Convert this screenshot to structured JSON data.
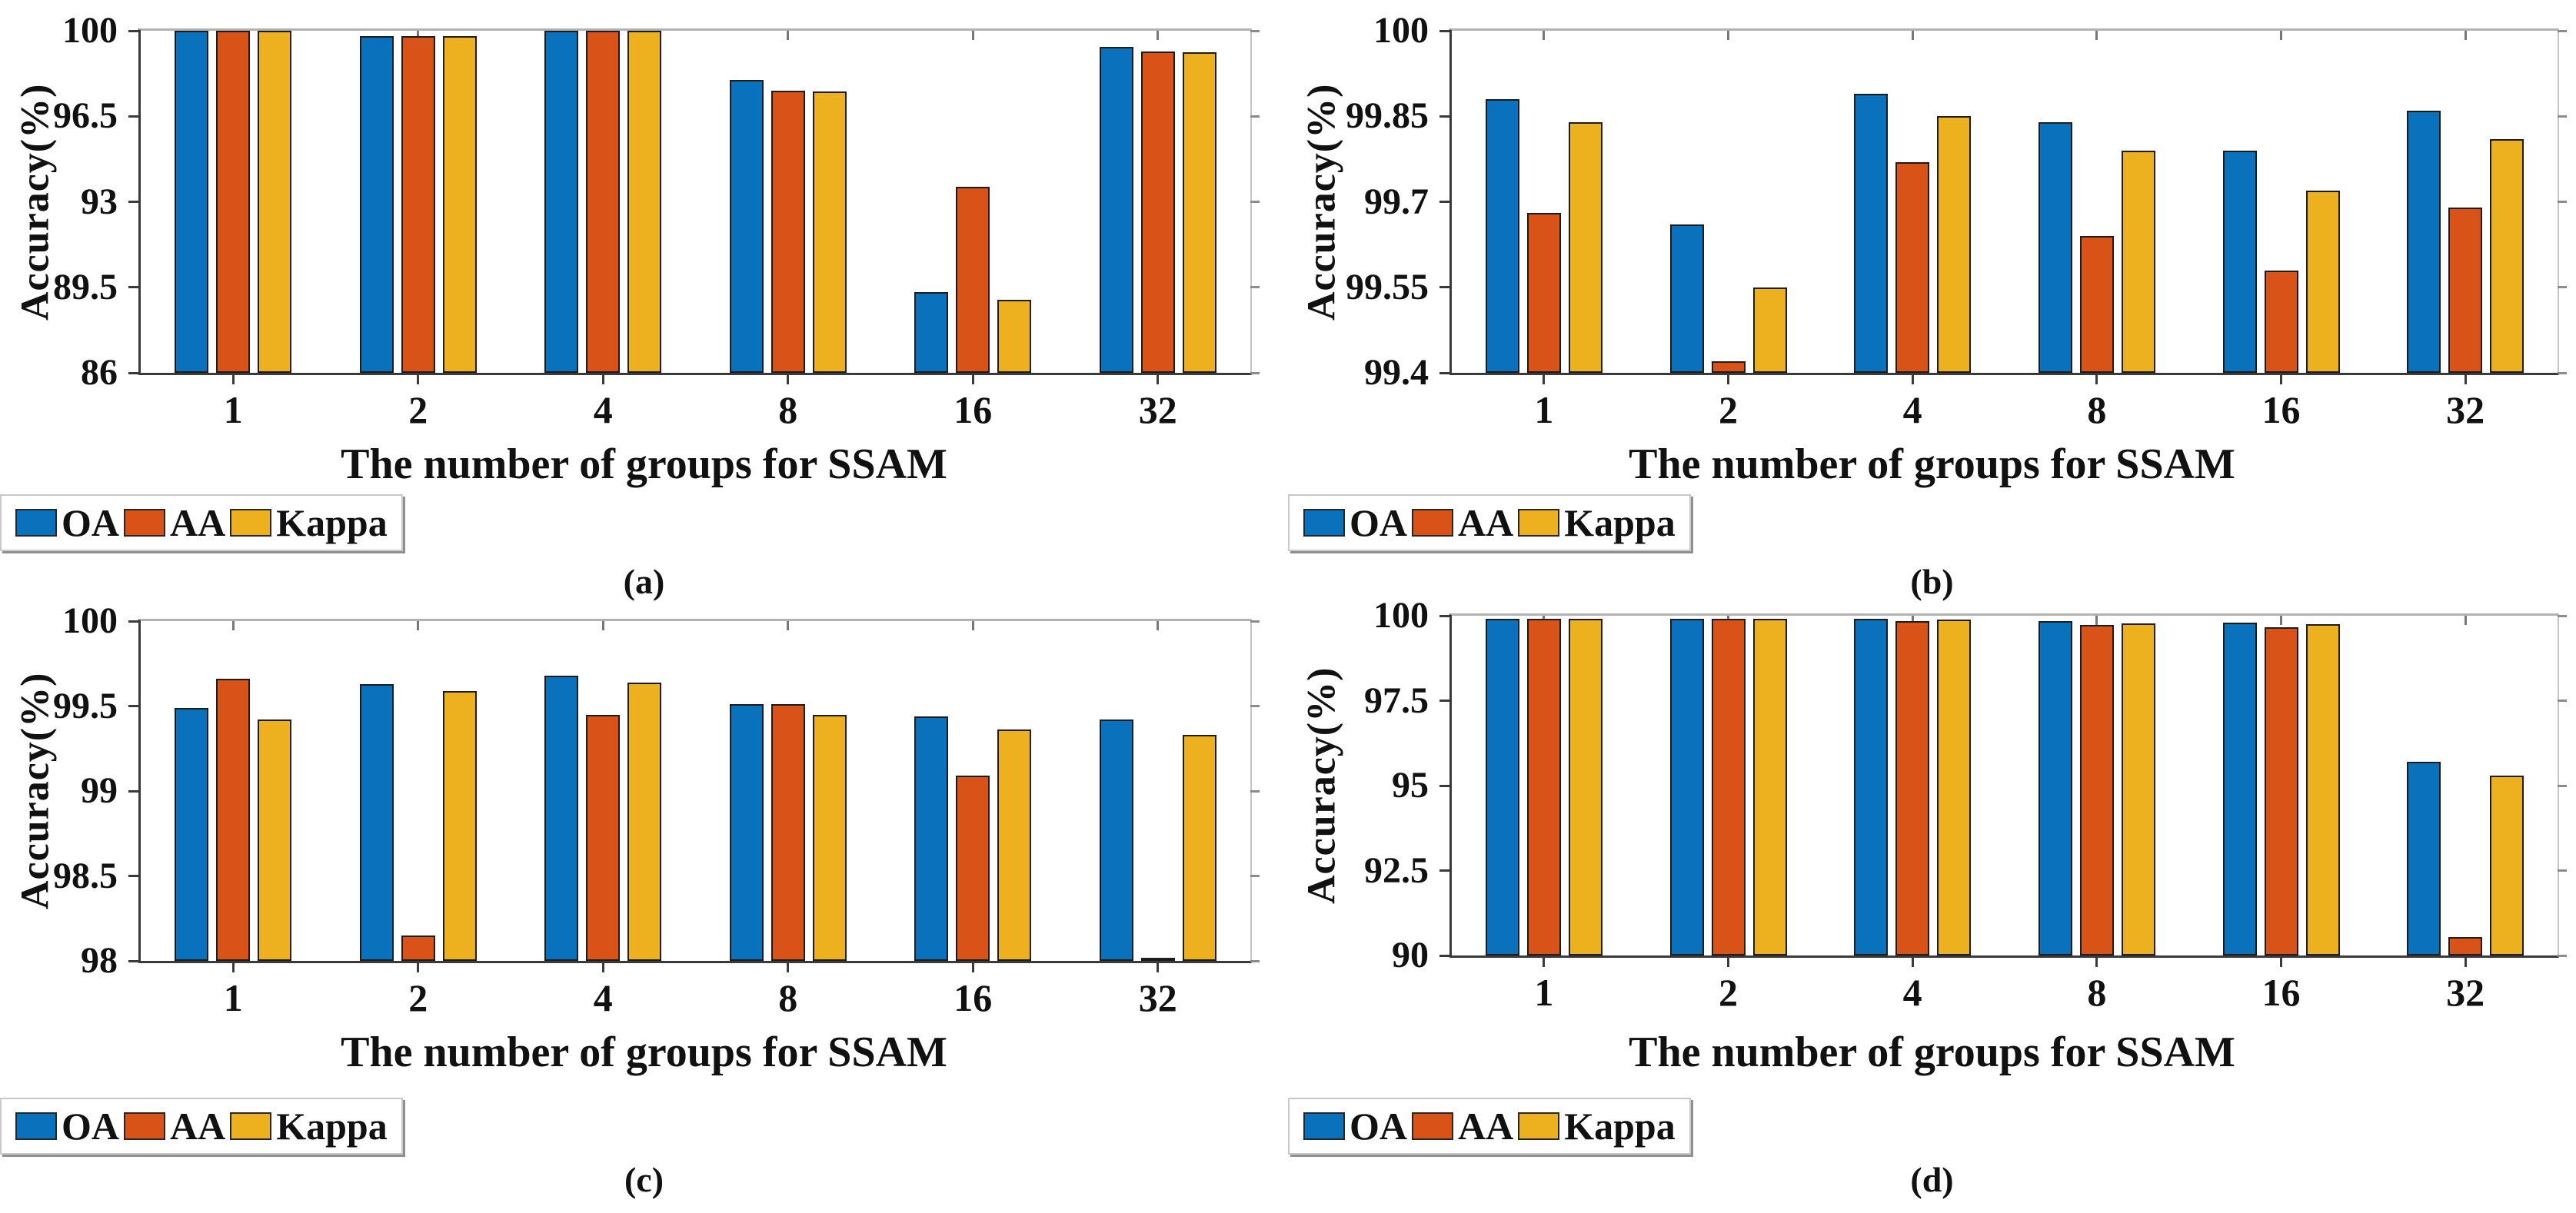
{
  "figure": {
    "y_label": "Accuracy(%)",
    "x_label": "The number of groups for SSAM",
    "legend": [
      "OA",
      "AA",
      "Kappa"
    ],
    "legend_position": "below",
    "colors": {
      "OA": "#0A72BD",
      "AA": "#D95319",
      "Kappa": "#EDB120"
    },
    "axis_color": "#3a3a3a",
    "background": "#ffffff"
  },
  "chart_data": [
    {
      "id": "a",
      "type": "bar",
      "caption": "(a)",
      "title": "",
      "xlabel": "The number of groups for SSAM",
      "ylabel": "Accuracy(%)",
      "categories": [
        "1",
        "2",
        "4",
        "8",
        "16",
        "32"
      ],
      "ylim": [
        86,
        100
      ],
      "yticks": [
        86,
        89.5,
        93,
        96.5,
        100
      ],
      "grid": false,
      "series": [
        {
          "name": "OA",
          "values": [
            100,
            99.78,
            100,
            98.0,
            89.3,
            99.35
          ]
        },
        {
          "name": "AA",
          "values": [
            100,
            99.78,
            100,
            97.55,
            93.6,
            99.15
          ]
        },
        {
          "name": "Kappa",
          "values": [
            100,
            99.77,
            100,
            97.5,
            89.0,
            99.12
          ]
        }
      ]
    },
    {
      "id": "b",
      "type": "bar",
      "caption": "(b)",
      "title": "",
      "xlabel": "The number of groups for SSAM",
      "ylabel": "Accuracy(%)",
      "categories": [
        "1",
        "2",
        "4",
        "8",
        "16",
        "32"
      ],
      "ylim": [
        99.4,
        100
      ],
      "yticks": [
        99.4,
        99.55,
        99.7,
        99.85,
        100
      ],
      "grid": false,
      "series": [
        {
          "name": "OA",
          "values": [
            99.88,
            99.66,
            99.89,
            99.84,
            99.79,
            99.86
          ]
        },
        {
          "name": "AA",
          "values": [
            99.68,
            99.42,
            99.77,
            99.64,
            99.58,
            99.69
          ]
        },
        {
          "name": "Kappa",
          "values": [
            99.84,
            99.55,
            99.85,
            99.79,
            99.72,
            99.81
          ]
        }
      ]
    },
    {
      "id": "c",
      "type": "bar",
      "caption": "(c)",
      "title": "",
      "xlabel": "The number of groups for SSAM",
      "ylabel": "Accuracy(%)",
      "categories": [
        "1",
        "2",
        "4",
        "8",
        "16",
        "32"
      ],
      "ylim": [
        98,
        100
      ],
      "yticks": [
        98,
        98.5,
        99,
        99.5,
        100
      ],
      "grid": false,
      "series": [
        {
          "name": "OA",
          "values": [
            99.49,
            99.63,
            99.68,
            99.51,
            99.44,
            99.42
          ]
        },
        {
          "name": "AA",
          "values": [
            99.66,
            98.15,
            99.45,
            99.51,
            99.09,
            98.02
          ]
        },
        {
          "name": "Kappa",
          "values": [
            99.42,
            99.59,
            99.64,
            99.45,
            99.36,
            99.33
          ]
        }
      ]
    },
    {
      "id": "d",
      "type": "bar",
      "caption": "(d)",
      "title": "",
      "xlabel": "The number of groups for SSAM",
      "ylabel": "Accuracy(%)",
      "categories": [
        "1",
        "2",
        "4",
        "8",
        "16",
        "32"
      ],
      "ylim": [
        90,
        100
      ],
      "yticks": [
        90,
        92.5,
        95,
        97.5,
        100
      ],
      "grid": false,
      "series": [
        {
          "name": "OA",
          "values": [
            99.92,
            99.92,
            99.9,
            99.85,
            99.8,
            95.7
          ]
        },
        {
          "name": "AA",
          "values": [
            99.92,
            99.92,
            99.85,
            99.72,
            99.65,
            90.55
          ]
        },
        {
          "name": "Kappa",
          "values": [
            99.92,
            99.92,
            99.88,
            99.78,
            99.75,
            95.3
          ]
        }
      ]
    }
  ]
}
